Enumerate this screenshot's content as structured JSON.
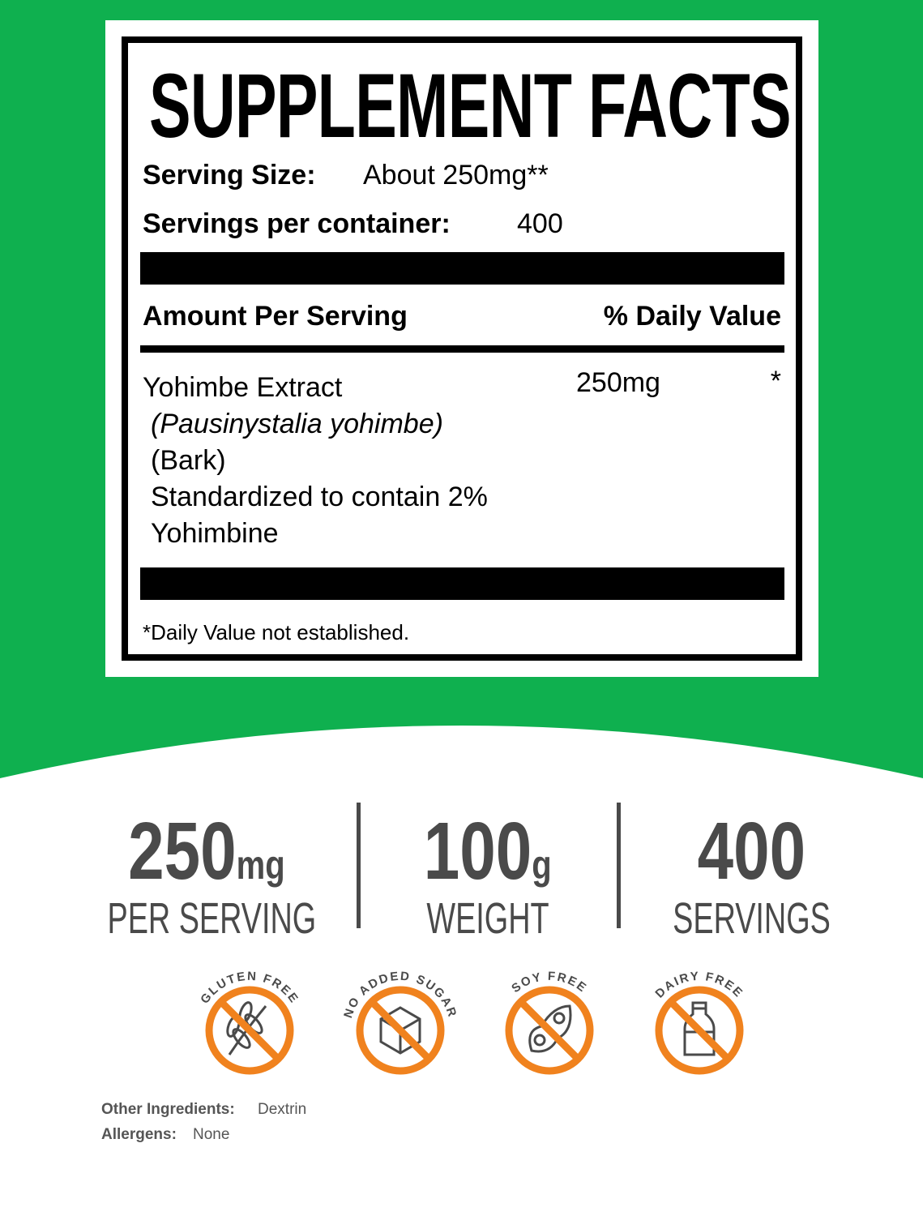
{
  "colors": {
    "green": "#0fb04f",
    "orange": "#f0821e",
    "gray": "#4a4a4a"
  },
  "facts": {
    "title": "SUPPLEMENT FACTS",
    "serving_size_label": "Serving Size:",
    "serving_size_value": "About 250mg**",
    "servings_label": "Servings per container:",
    "servings_value": "400",
    "amount_header": "Amount Per Serving",
    "dv_header": "% Daily Value",
    "ingredient": {
      "name": "Yohimbe Extract",
      "latin": "(Pausinystalia yohimbe)",
      "part": "(Bark)",
      "std1": "Standardized to contain 2%",
      "std2": "Yohimbine",
      "amount": "250mg",
      "dv": "*"
    },
    "footnote": "*Daily Value not established."
  },
  "stats": [
    {
      "value": "250",
      "unit": "mg",
      "label": "PER SERVING"
    },
    {
      "value": "100",
      "unit": "g",
      "label": "WEIGHT"
    },
    {
      "value": "400",
      "unit": "",
      "label": "SERVINGS"
    }
  ],
  "badges": [
    {
      "label": "GLUTEN FREE",
      "icon": "wheat-icon"
    },
    {
      "label": "NO ADDED SUGAR",
      "icon": "sugar-cube-icon"
    },
    {
      "label": "SOY FREE",
      "icon": "soybean-icon"
    },
    {
      "label": "DAIRY FREE",
      "icon": "milk-bottle-icon"
    }
  ],
  "other": {
    "ingredients_label": "Other Ingredients:",
    "ingredients_value": "Dextrin",
    "allergens_label": "Allergens:",
    "allergens_value": "None"
  }
}
